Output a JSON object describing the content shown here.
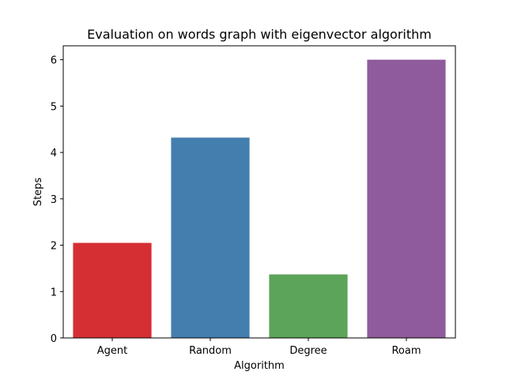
{
  "chart_data": {
    "type": "bar",
    "title": "Evaluation on words graph with eigenvector algorithm",
    "xlabel": "Algorithm",
    "ylabel": "Steps",
    "categories": [
      "Agent",
      "Random",
      "Degree",
      "Roam"
    ],
    "values": [
      2.05,
      4.32,
      1.37,
      6.0
    ],
    "colors": [
      "#d62f33",
      "#447eae",
      "#5ba459",
      "#8f5b9c"
    ],
    "ylim": [
      0,
      6.3
    ],
    "yticks": [
      0,
      1,
      2,
      3,
      4,
      5,
      6
    ],
    "ytick_labels": [
      "0",
      "1",
      "2",
      "3",
      "4",
      "5",
      "6"
    ],
    "grid": false,
    "legend": "none"
  }
}
